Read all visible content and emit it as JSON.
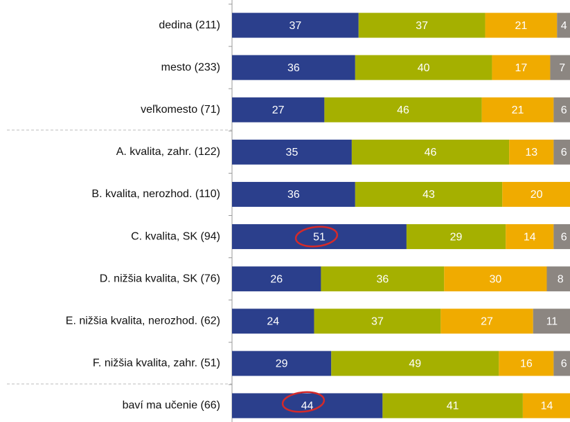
{
  "chart_data": {
    "type": "stacked-bar-horizontal",
    "categories": [
      "dedina (211)",
      "mesto (233)",
      "veľkomesto (71)",
      "A. kvalita, zahr. (122)",
      "B. kvalita, nerozhod. (110)",
      "C. kvalita, SK (94)",
      "D. nižšia kvalita, SK (76)",
      "E. nižšia kvalita, nerozhod. (62)",
      "F. nižšia kvalita, zahr. (51)",
      "baví ma učenie (66)"
    ],
    "series": [
      {
        "color": "#2b3f8c",
        "values": [
          37,
          36,
          27,
          35,
          36,
          51,
          26,
          24,
          29,
          44
        ]
      },
      {
        "color": "#a5b000",
        "values": [
          37,
          40,
          46,
          46,
          43,
          29,
          36,
          37,
          49,
          41
        ]
      },
      {
        "color": "#f0ab00",
        "values": [
          21,
          17,
          21,
          13,
          20,
          14,
          30,
          27,
          16,
          14
        ]
      },
      {
        "color": "#8c8681",
        "values": [
          4,
          7,
          6,
          6,
          1,
          6,
          8,
          11,
          6,
          2
        ]
      }
    ],
    "xlim": [
      0,
      100
    ]
  }
}
